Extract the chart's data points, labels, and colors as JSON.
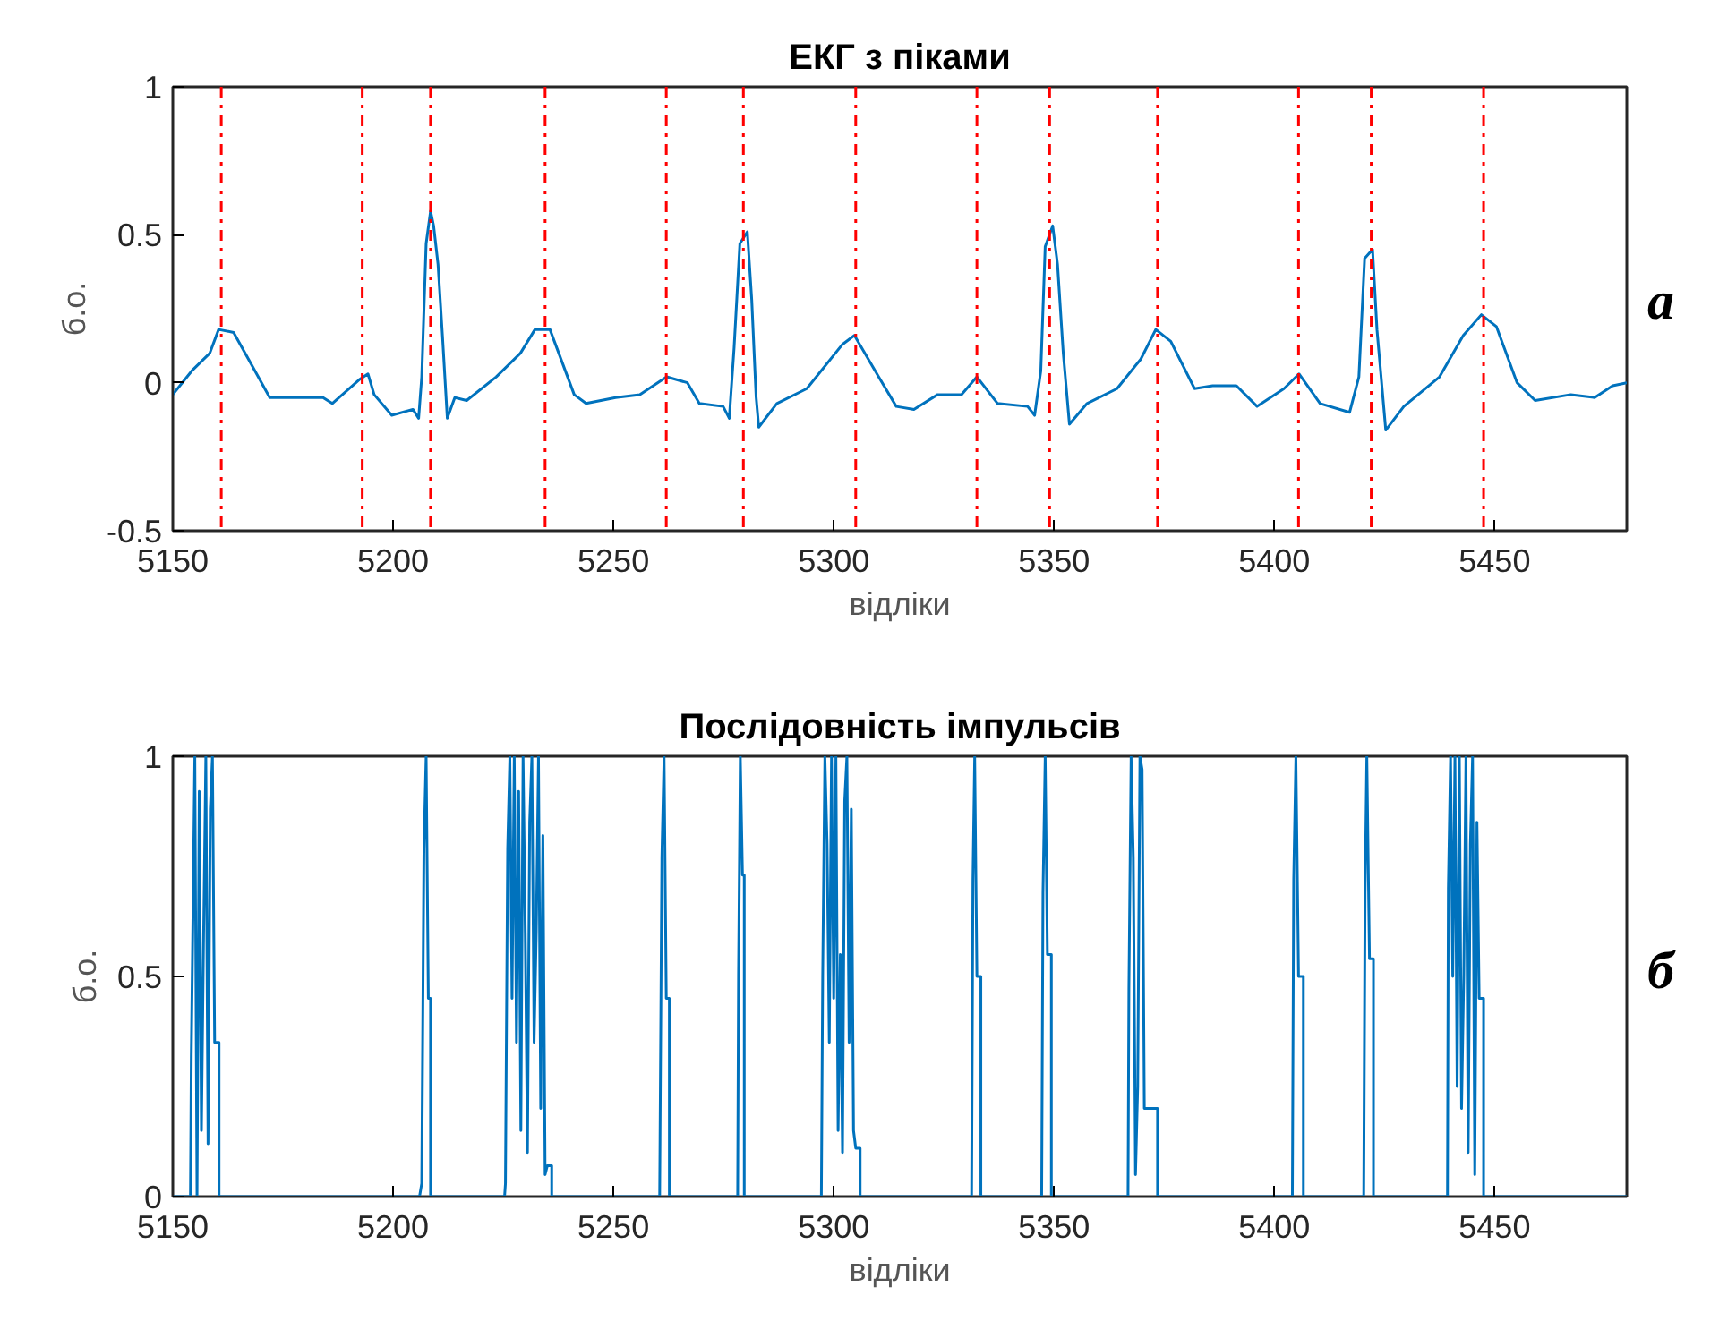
{
  "chart_data": [
    {
      "type": "line",
      "title": "ЕКГ з піками",
      "xlabel": "відліки",
      "ylabel": "б.о.",
      "annotations": [
        "а"
      ],
      "xlim": [
        5150,
        5480
      ],
      "ylim": [
        -0.5,
        1
      ],
      "xticks": [
        5150,
        5200,
        5250,
        5300,
        5350,
        5400,
        5450
      ],
      "yticks": [
        -0.5,
        0,
        0.5,
        1
      ],
      "line_style": "solid",
      "series": [
        {
          "color": "#0072bd",
          "x": [
            5150,
            5154.3,
            5158.4,
            5160.4,
            5163.8,
            5167.9,
            5172,
            5177.4,
            5184.1,
            5186.2,
            5192.3,
            5194.3,
            5195.7,
            5199.7,
            5204.5,
            5205.8,
            5206.5,
            5207.5,
            5208.5,
            5209.2,
            5210.2,
            5211.2,
            5212.3,
            5214,
            5216.7,
            5223.4,
            5228.9,
            5232.2,
            5235.6,
            5241.1,
            5243.8,
            5250.5,
            5256,
            5262.1,
            5266.8,
            5269.5,
            5274.9,
            5276.3,
            5277.4,
            5278.7,
            5280.4,
            5281.4,
            5282.4,
            5283,
            5287.1,
            5293.9,
            5302,
            5304.7,
            5310.2,
            5314.2,
            5318.2,
            5323.6,
            5329,
            5332.5,
            5337.2,
            5344,
            5345.6,
            5347,
            5348,
            5349.7,
            5350.8,
            5352.1,
            5353.5,
            5357.5,
            5364.3,
            5369.7,
            5373.1,
            5376.5,
            5381.9,
            5386,
            5391.4,
            5396.1,
            5402.2,
            5405.6,
            5410.4,
            5417.1,
            5419.2,
            5420.5,
            5422.3,
            5423.3,
            5425.3,
            5429.4,
            5437.5,
            5442.9,
            5447,
            5450.4,
            5455.1,
            5459.2,
            5467.3,
            5472.7,
            5476.8,
            5480
          ],
          "values": [
            -0.04,
            0.04,
            0.1,
            0.18,
            0.17,
            0.06,
            -0.05,
            -0.05,
            -0.05,
            -0.07,
            0.01,
            0.03,
            -0.04,
            -0.11,
            -0.09,
            -0.12,
            0.02,
            0.47,
            0.58,
            0.53,
            0.4,
            0.16,
            -0.12,
            -0.05,
            -0.06,
            0.02,
            0.1,
            0.18,
            0.18,
            -0.04,
            -0.07,
            -0.05,
            -0.04,
            0.02,
            0,
            -0.07,
            -0.08,
            -0.12,
            0.12,
            0.47,
            0.51,
            0.28,
            -0.05,
            -0.15,
            -0.07,
            -0.02,
            0.13,
            0.16,
            0.02,
            -0.08,
            -0.09,
            -0.04,
            -0.04,
            0.02,
            -0.07,
            -0.08,
            -0.11,
            0.04,
            0.46,
            0.53,
            0.4,
            0.1,
            -0.14,
            -0.07,
            -0.02,
            0.08,
            0.18,
            0.14,
            -0.02,
            -0.01,
            -0.01,
            -0.08,
            -0.02,
            0.03,
            -0.07,
            -0.1,
            0.02,
            0.42,
            0.45,
            0.18,
            -0.16,
            -0.08,
            0.02,
            0.16,
            0.23,
            0.19,
            0,
            -0.06,
            -0.04,
            -0.05,
            -0.01,
            0
          ]
        }
      ],
      "ref_lines": [
        {
          "axis": "x",
          "value": 5161,
          "color": "#ff0000",
          "line_style": "dashdot"
        },
        {
          "axis": "x",
          "value": 5193,
          "color": "#ff0000",
          "line_style": "dashdot"
        },
        {
          "axis": "x",
          "value": 5208.5,
          "color": "#ff0000",
          "line_style": "dashdot"
        },
        {
          "axis": "x",
          "value": 5234.5,
          "color": "#ff0000",
          "line_style": "dashdot"
        },
        {
          "axis": "x",
          "value": 5262,
          "color": "#ff0000",
          "line_style": "dashdot"
        },
        {
          "axis": "x",
          "value": 5279.5,
          "color": "#ff0000",
          "line_style": "dashdot"
        },
        {
          "axis": "x",
          "value": 5305,
          "color": "#ff0000",
          "line_style": "dashdot"
        },
        {
          "axis": "x",
          "value": 5332.5,
          "color": "#ff0000",
          "line_style": "dashdot"
        },
        {
          "axis": "x",
          "value": 5349,
          "color": "#ff0000",
          "line_style": "dashdot"
        },
        {
          "axis": "x",
          "value": 5373.5,
          "color": "#ff0000",
          "line_style": "dashdot"
        },
        {
          "axis": "x",
          "value": 5405.5,
          "color": "#ff0000",
          "line_style": "dashdot"
        },
        {
          "axis": "x",
          "value": 5422,
          "color": "#ff0000",
          "line_style": "dashdot"
        },
        {
          "axis": "x",
          "value": 5447.5,
          "color": "#ff0000",
          "line_style": "dashdot"
        }
      ]
    },
    {
      "type": "line",
      "title": "Послідовність імпульсів",
      "xlabel": "відліки",
      "ylabel": "б.о.",
      "annotations": [
        "б"
      ],
      "xlim": [
        5150,
        5480
      ],
      "ylim": [
        0,
        1
      ],
      "xticks": [
        5150,
        5200,
        5250,
        5300,
        5350,
        5400,
        5450
      ],
      "yticks": [
        0,
        0.5,
        1
      ],
      "line_style": "solid",
      "series": [
        {
          "color": "#0072bd",
          "x": [
            5150,
            5154,
            5154.2,
            5155,
            5155.5,
            5156,
            5156.5,
            5157,
            5157.5,
            5158,
            5158.5,
            5159,
            5159.5,
            5160.5,
            5160.5,
            5206,
            5206.5,
            5207,
            5207.5,
            5208,
            5208.5,
            5208.5,
            5225.3,
            5225.5,
            5226,
            5226.5,
            5227,
            5227.5,
            5228,
            5228.5,
            5229,
            5229.5,
            5230,
            5230.5,
            5231,
            5231.5,
            5232,
            5232.5,
            5233,
            5233.5,
            5234,
            5234.5,
            5235,
            5236,
            5236,
            5260.5,
            5261,
            5261.5,
            5262,
            5262.7,
            5262.7,
            5278.2,
            5278.4,
            5278.8,
            5279.3,
            5279.7,
            5279.7,
            5297.2,
            5297.5,
            5298,
            5298.5,
            5299,
            5299.5,
            5300,
            5300.5,
            5301,
            5301.5,
            5302,
            5302.5,
            5303,
            5303.5,
            5304,
            5304.5,
            5305,
            5306,
            5306,
            5331.3,
            5331.6,
            5332,
            5332.5,
            5333.4,
            5333.4,
            5347.2,
            5347.5,
            5348,
            5348.5,
            5349.4,
            5349.4,
            5366.8,
            5367,
            5367.5,
            5368,
            5368.5,
            5369,
            5369.5,
            5370,
            5370.5,
            5373.5,
            5373.5,
            5404.1,
            5404.4,
            5404.9,
            5405.5,
            5406.6,
            5406.6,
            5420.3,
            5420.6,
            5421,
            5421.6,
            5422.5,
            5422.5,
            5439.3,
            5439.5,
            5440,
            5440.5,
            5441,
            5441.5,
            5442,
            5442.5,
            5443,
            5443.5,
            5444,
            5444.5,
            5445,
            5445.5,
            5446,
            5446.5,
            5447.5,
            5447.5,
            5480
          ],
          "values": [
            0,
            0,
            0.32,
            1,
            0,
            0.92,
            0.15,
            0.6,
            1,
            0.12,
            0.88,
            1,
            0.35,
            0.35,
            0,
            0,
            0.03,
            0.79,
            1,
            0.45,
            0.45,
            0,
            0,
            0.03,
            0.79,
            1,
            0.45,
            1,
            0.35,
            0.92,
            0.15,
            1,
            0.6,
            0.1,
            0.85,
            1,
            0.35,
            0.6,
            1,
            0.2,
            0.82,
            0.05,
            0.07,
            0.07,
            0,
            0,
            0.77,
            1,
            0.45,
            0.45,
            0,
            0,
            0.5,
            1,
            0.73,
            0.73,
            0,
            0,
            0.5,
            1,
            0.8,
            0.35,
            1,
            0.45,
            1,
            0.15,
            0.55,
            0.1,
            0.9,
            1,
            0.35,
            0.88,
            0.15,
            0.11,
            0.11,
            0,
            0,
            0.72,
            1,
            0.5,
            0.5,
            0,
            0,
            0.69,
            1,
            0.55,
            0.55,
            0,
            0,
            0.47,
            1,
            0.77,
            0.05,
            0.25,
            1,
            0.97,
            0.2,
            0.2,
            0,
            0,
            0.72,
            1,
            0.5,
            0.5,
            0,
            0,
            0.69,
            1,
            0.54,
            0.54,
            0,
            0,
            0.7,
            1,
            0.5,
            1,
            0.25,
            1,
            0.2,
            0.5,
            1,
            0.1,
            0.8,
            1,
            0.05,
            0.85,
            0.45,
            0.45,
            0,
            0
          ]
        }
      ]
    }
  ]
}
